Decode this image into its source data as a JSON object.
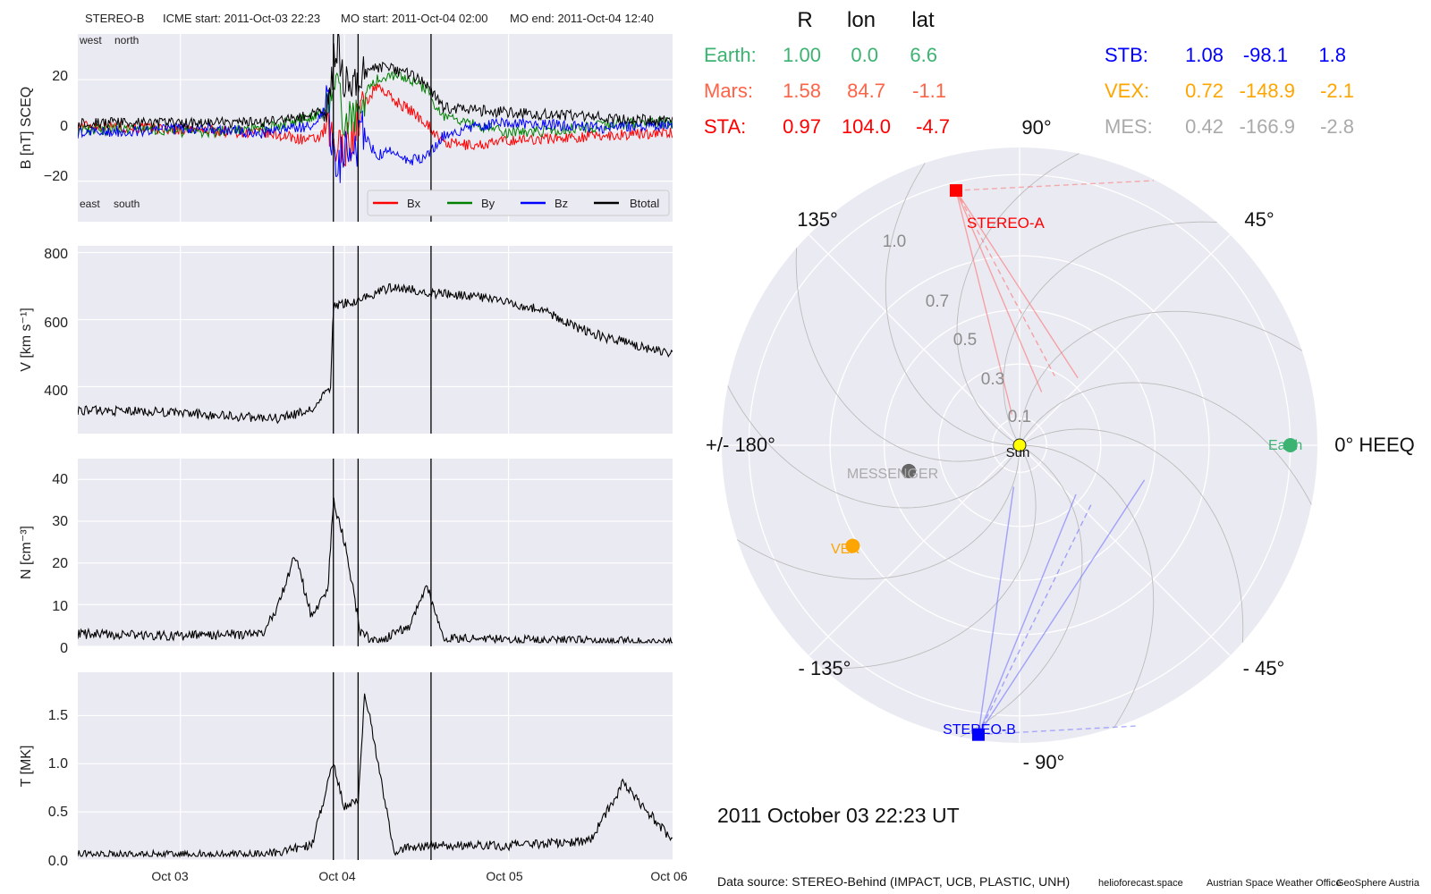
{
  "header": {
    "spacecraft": "STEREO-B",
    "icme_start": "ICME start: 2011-Oct-03 22:23",
    "mo_start": "MO start: 2011-Oct-04 02:00",
    "mo_end": "MO end: 2011-Oct-04 12:40"
  },
  "panels": {
    "b": {
      "ylabel": "B [nT] SCEQ",
      "yticks": [
        "20",
        "0",
        "−20"
      ],
      "corner_top_left": "west",
      "corner_top_right": "north",
      "corner_bottom_left": "east",
      "corner_bottom_right": "south",
      "legend": [
        "Bx",
        "By",
        "Bz",
        "Btotal"
      ]
    },
    "v": {
      "ylabel": "V [km s⁻¹]",
      "yticks": [
        "800",
        "600",
        "400"
      ]
    },
    "n": {
      "ylabel": "N [cm⁻³]",
      "yticks": [
        "40",
        "30",
        "20",
        "10",
        "0"
      ]
    },
    "t": {
      "ylabel": "T [MK]",
      "yticks": [
        "1.5",
        "1.0",
        "0.5",
        "0.0"
      ]
    }
  },
  "xticks": [
    "Oct 03",
    "Oct 04",
    "Oct 05",
    "Oct 06"
  ],
  "positions_table": {
    "headers": [
      "R",
      "lon",
      "lat"
    ],
    "rows": [
      {
        "name": "Earth:",
        "r": "1.00",
        "lon": "0.0",
        "lat": "6.6",
        "color": "#3cb371"
      },
      {
        "name": "Mars:",
        "r": "1.58",
        "lon": "84.7",
        "lat": "-1.1",
        "color": "#ff6347"
      },
      {
        "name": "STA:",
        "r": "0.97",
        "lon": "104.0",
        "lat": "-4.7",
        "color": "#ff0000"
      },
      {
        "name": "STB:",
        "r": "1.08",
        "lon": "-98.1",
        "lat": "1.8",
        "color": "#0000ff"
      },
      {
        "name": "VEX:",
        "r": "0.72",
        "lon": "-148.9",
        "lat": "-2.1",
        "color": "#ffa500"
      },
      {
        "name": "MES:",
        "r": "0.42",
        "lon": "-166.9",
        "lat": "-2.8",
        "color": "#aaaaaa"
      }
    ]
  },
  "polar": {
    "angle_labels": [
      "90°",
      "45°",
      "0° HEEQ",
      "- 45°",
      "- 90°",
      "- 135°",
      "+/- 180°",
      "135°"
    ],
    "radial_labels": [
      "0.1",
      "0.3",
      "0.5",
      "0.7",
      "1.0"
    ],
    "body_labels": {
      "sun": "Sun",
      "earth": "Earth",
      "sta": "STEREO-A",
      "stb": "STEREO-B",
      "mes": "MESSENGER",
      "vex": "VEX"
    },
    "colors": {
      "earth": "#3cb371",
      "sta": "#ff0000",
      "stb": "#0000ff",
      "vex": "#ffa500",
      "mes": "#666666",
      "sun": "#ffff00"
    }
  },
  "datetime": "2011 October 03  22:23 UT",
  "footer": {
    "source": "Data source: STEREO-Behind (IMPACT, UCB, PLASTIC, UNH)",
    "credit1": "helioforecast.space",
    "credit2": "Austrian Space Weather Office",
    "credit3": "GeoSphere Austria"
  },
  "chart_data": [
    {
      "type": "line",
      "title": "STEREO-B",
      "ylabel": "B [nT] SCEQ",
      "x_unit": "days since 2011-10-03 00:00",
      "xlim": [
        "2011-10-02 09:00",
        "2011-10-06 00:00"
      ],
      "ylim": [
        -36,
        38
      ],
      "event_lines": [
        "2011-10-03 22:23",
        "2011-10-04 02:00",
        "2011-10-04 12:40"
      ],
      "series": [
        {
          "name": "Bx",
          "color": "#ff0000",
          "x": [
            "2011-10-02 09:00",
            "2011-10-02 18:00",
            "2011-10-03 03:00",
            "2011-10-03 12:00",
            "2011-10-03 19:12",
            "2011-10-03 21:36",
            "2011-10-03 22:48",
            "2011-10-04 00:00",
            "2011-10-04 01:12",
            "2011-10-04 02:24",
            "2011-10-04 04:48",
            "2011-10-04 07:12",
            "2011-10-04 09:36",
            "2011-10-04 12:00",
            "2011-10-04 14:24",
            "2011-10-04 19:12",
            "2011-10-05 00:00",
            "2011-10-05 07:12",
            "2011-10-05 14:24",
            "2011-10-05 21:36",
            "2011-10-06 00:00"
          ],
          "y": [
            2,
            1,
            0,
            -1,
            -4,
            -1,
            -8,
            -6,
            -3,
            8,
            18,
            12,
            8,
            3,
            -5,
            -6,
            -4,
            -3,
            -2,
            -1,
            -1
          ]
        },
        {
          "name": "By",
          "color": "#008000",
          "x": [
            "2011-10-02 09:00",
            "2011-10-02 18:00",
            "2011-10-03 03:00",
            "2011-10-03 12:00",
            "2011-10-03 19:12",
            "2011-10-03 21:36",
            "2011-10-03 22:48",
            "2011-10-04 00:00",
            "2011-10-04 01:12",
            "2011-10-04 02:24",
            "2011-10-04 04:48",
            "2011-10-04 07:12",
            "2011-10-04 09:36",
            "2011-10-04 12:00",
            "2011-10-04 14:24",
            "2011-10-04 19:12",
            "2011-10-05 00:00",
            "2011-10-05 07:12",
            "2011-10-05 14:24",
            "2011-10-05 21:36",
            "2011-10-06 00:00"
          ],
          "y": [
            0,
            1,
            -1,
            1,
            5,
            8,
            15,
            5,
            2,
            12,
            20,
            22,
            20,
            16,
            5,
            2,
            -1,
            0,
            2,
            3,
            3
          ]
        },
        {
          "name": "Bz",
          "color": "#0000ff",
          "x": [
            "2011-10-02 09:00",
            "2011-10-02 18:00",
            "2011-10-03 03:00",
            "2011-10-03 12:00",
            "2011-10-03 19:12",
            "2011-10-03 21:36",
            "2011-10-03 22:48",
            "2011-10-04 00:00",
            "2011-10-04 01:12",
            "2011-10-04 02:24",
            "2011-10-04 04:48",
            "2011-10-04 07:12",
            "2011-10-04 09:36",
            "2011-10-04 12:00",
            "2011-10-04 14:24",
            "2011-10-04 19:12",
            "2011-10-05 00:00",
            "2011-10-05 07:12",
            "2011-10-05 14:24",
            "2011-10-05 21:36",
            "2011-10-06 00:00"
          ],
          "y": [
            -1,
            0,
            1,
            -1,
            2,
            10,
            -20,
            -5,
            -15,
            0,
            -10,
            -8,
            -12,
            -10,
            -2,
            2,
            3,
            2,
            1,
            2,
            2
          ]
        },
        {
          "name": "Btotal",
          "color": "#000000",
          "x": [
            "2011-10-02 09:00",
            "2011-10-02 18:00",
            "2011-10-03 03:00",
            "2011-10-03 12:00",
            "2011-10-03 19:12",
            "2011-10-03 21:36",
            "2011-10-03 22:48",
            "2011-10-04 00:00",
            "2011-10-04 01:12",
            "2011-10-04 02:24",
            "2011-10-04 04:48",
            "2011-10-04 07:12",
            "2011-10-04 09:36",
            "2011-10-04 12:00",
            "2011-10-04 14:24",
            "2011-10-04 19:12",
            "2011-10-05 00:00",
            "2011-10-05 07:12",
            "2011-10-05 14:24",
            "2011-10-05 21:36",
            "2011-10-06 00:00"
          ],
          "y": [
            3,
            3,
            3,
            3,
            6,
            10,
            35,
            20,
            18,
            22,
            25,
            24,
            22,
            18,
            9,
            8,
            7,
            6,
            5,
            4,
            4
          ]
        }
      ]
    },
    {
      "type": "line",
      "ylabel": "V [km s⁻¹]",
      "ylim": [
        260,
        820
      ],
      "series": [
        {
          "name": "V",
          "color": "#000000",
          "x": [
            "2011-10-02 09:00",
            "2011-10-02 21:00",
            "2011-10-03 09:00",
            "2011-10-03 14:24",
            "2011-10-03 19:12",
            "2011-10-03 22:00",
            "2011-10-03 22:23",
            "2011-10-04 02:24",
            "2011-10-04 07:12",
            "2011-10-04 12:00",
            "2011-10-04 19:12",
            "2011-10-05 00:00",
            "2011-10-05 04:48",
            "2011-10-05 09:36",
            "2011-10-05 14:24",
            "2011-10-05 19:12",
            "2011-10-06 00:00"
          ],
          "y": [
            330,
            325,
            310,
            305,
            330,
            400,
            640,
            660,
            700,
            680,
            670,
            650,
            630,
            580,
            545,
            520,
            500
          ]
        }
      ]
    },
    {
      "type": "line",
      "ylabel": "N [cm⁻³]",
      "ylim": [
        0,
        45
      ],
      "series": [
        {
          "name": "N",
          "color": "#000000",
          "x": [
            "2011-10-02 09:00",
            "2011-10-03 00:00",
            "2011-10-03 12:00",
            "2011-10-03 14:24",
            "2011-10-03 16:48",
            "2011-10-03 19:12",
            "2011-10-03 21:36",
            "2011-10-03 22:23",
            "2011-10-04 00:00",
            "2011-10-04 02:24",
            "2011-10-04 04:48",
            "2011-10-04 09:36",
            "2011-10-04 12:00",
            "2011-10-04 14:24",
            "2011-10-05 00:00",
            "2011-10-06 00:00"
          ],
          "y": [
            3,
            2.5,
            3,
            10,
            22,
            7,
            14,
            35,
            25,
            3,
            1,
            5,
            15,
            2,
            1.5,
            1
          ]
        }
      ]
    },
    {
      "type": "line",
      "ylabel": "T [MK]",
      "ylim": [
        0,
        1.95
      ],
      "series": [
        {
          "name": "T",
          "color": "#000000",
          "x": [
            "2011-10-02 09:00",
            "2011-10-03 00:00",
            "2011-10-03 12:00",
            "2011-10-03 19:12",
            "2011-10-03 22:23",
            "2011-10-04 00:00",
            "2011-10-04 02:00",
            "2011-10-04 03:00",
            "2011-10-04 07:12",
            "2011-10-04 12:00",
            "2011-10-05 00:00",
            "2011-10-05 12:00",
            "2011-10-05 16:48",
            "2011-10-06 00:00"
          ],
          "y": [
            0.05,
            0.05,
            0.05,
            0.15,
            1.0,
            0.55,
            0.6,
            1.75,
            0.1,
            0.15,
            0.15,
            0.2,
            0.8,
            0.2
          ]
        }
      ]
    },
    {
      "type": "scatter",
      "title": "Planet and spacecraft positions (HEEQ)",
      "rlim": [
        0,
        1.1
      ],
      "points": [
        {
          "name": "Sun",
          "r": 0.0,
          "lon": 0.0
        },
        {
          "name": "Earth",
          "r": 1.0,
          "lon": 0.0
        },
        {
          "name": "STEREO-A",
          "r": 0.97,
          "lon": 104.0
        },
        {
          "name": "STEREO-B",
          "r": 1.08,
          "lon": -98.1
        },
        {
          "name": "VEX",
          "r": 0.72,
          "lon": -148.9
        },
        {
          "name": "MESSENGER",
          "r": 0.42,
          "lon": -166.9
        }
      ]
    }
  ]
}
